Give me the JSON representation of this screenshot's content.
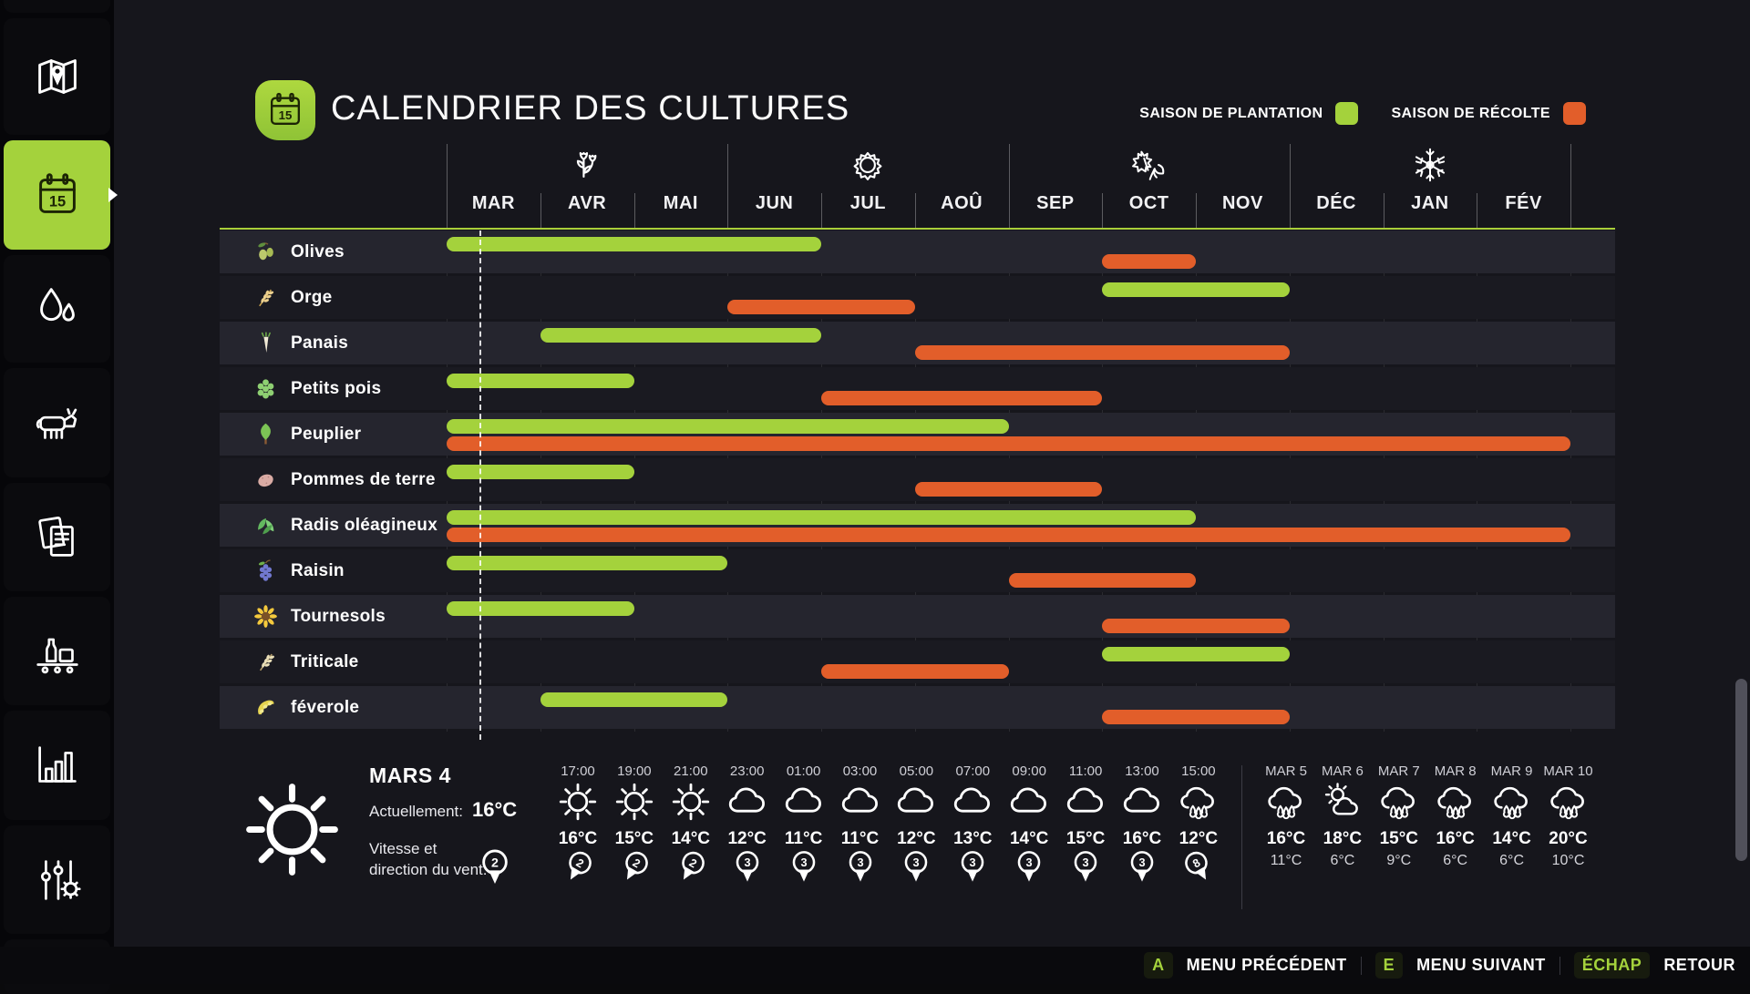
{
  "header": {
    "title": "CALENDRIER DES CULTURES"
  },
  "legend": {
    "plantation_label": "SAISON DE PLANTATION",
    "plantation_color": "#a4d23c",
    "recolte_label": "SAISON DE RÉCOLTE",
    "recolte_color": "#e25e2a"
  },
  "sidebar": {
    "items": [
      {
        "id": "map",
        "icon": "map",
        "selected": false
      },
      {
        "id": "calendar",
        "icon": "calendar",
        "selected": true
      },
      {
        "id": "water",
        "icon": "drops",
        "selected": false
      },
      {
        "id": "animals",
        "icon": "cow",
        "selected": false
      },
      {
        "id": "contracts",
        "icon": "documents",
        "selected": false
      },
      {
        "id": "production",
        "icon": "production",
        "selected": false
      },
      {
        "id": "statistics",
        "icon": "stats",
        "selected": false
      },
      {
        "id": "settings",
        "icon": "settings",
        "selected": false
      }
    ]
  },
  "chart_data": {
    "type": "gantt",
    "title": "CALENDRIER DES CULTURES",
    "months": [
      "MAR",
      "AVR",
      "MAI",
      "JUN",
      "JUL",
      "AOÛ",
      "SEP",
      "OCT",
      "NOV",
      "DÉC",
      "JAN",
      "FÉV"
    ],
    "seasons": [
      {
        "name": "printemps",
        "icon": "flowers",
        "center_month_index": 1
      },
      {
        "name": "ete",
        "icon": "season-sun",
        "center_month_index": 4
      },
      {
        "name": "automne",
        "icon": "leaves",
        "center_month_index": 7
      },
      {
        "name": "hiver",
        "icon": "snowflake",
        "center_month_index": 10
      }
    ],
    "current_date_line": {
      "month_index": 0,
      "fraction": 0.35
    },
    "crops": [
      {
        "name": "Olives",
        "icon": "olives",
        "plantation": [
          [
            1,
            4
          ]
        ],
        "recolte": [
          [
            8,
            8
          ]
        ]
      },
      {
        "name": "Orge",
        "icon": "orge",
        "plantation": [
          [
            8,
            9
          ]
        ],
        "recolte": [
          [
            4,
            5
          ]
        ]
      },
      {
        "name": "Panais",
        "icon": "panais",
        "plantation": [
          [
            2,
            4
          ]
        ],
        "recolte": [
          [
            6,
            9
          ]
        ]
      },
      {
        "name": "Petits pois",
        "icon": "petits-pois",
        "plantation": [
          [
            1,
            2
          ]
        ],
        "recolte": [
          [
            5,
            7
          ]
        ]
      },
      {
        "name": "Peuplier",
        "icon": "peuplier",
        "plantation": [
          [
            1,
            6
          ]
        ],
        "recolte": [
          [
            1,
            12
          ]
        ]
      },
      {
        "name": "Pommes de terre",
        "icon": "pommes-de-terre",
        "plantation": [
          [
            1,
            2
          ]
        ],
        "recolte": [
          [
            6,
            7
          ]
        ]
      },
      {
        "name": "Radis oléagineux",
        "icon": "radis",
        "plantation": [
          [
            1,
            8
          ]
        ],
        "recolte": [
          [
            1,
            12
          ]
        ]
      },
      {
        "name": "Raisin",
        "icon": "raisin",
        "plantation": [
          [
            1,
            3
          ]
        ],
        "recolte": [
          [
            7,
            8
          ]
        ]
      },
      {
        "name": "Tournesols",
        "icon": "tournesols",
        "plantation": [
          [
            1,
            2
          ]
        ],
        "recolte": [
          [
            8,
            9
          ]
        ]
      },
      {
        "name": "Triticale",
        "icon": "triticale",
        "plantation": [
          [
            8,
            9
          ]
        ],
        "recolte": [
          [
            5,
            6
          ]
        ]
      },
      {
        "name": "féverole",
        "icon": "feverole",
        "plantation": [
          [
            2,
            3
          ]
        ],
        "recolte": [
          [
            8,
            9
          ]
        ]
      }
    ]
  },
  "weather": {
    "current": {
      "date": "MARS 4",
      "icon": "sun",
      "now_label": "Actuellement:",
      "temperature": "16°C",
      "wind_label_line1": "Vitesse et",
      "wind_label_line2": "direction du vent:",
      "wind": "2",
      "wind_dir_deg": 0
    },
    "hourly": [
      {
        "time": "17:00",
        "icon": "sun",
        "temp": "16°C",
        "wind": "2",
        "dir_deg": 30
      },
      {
        "time": "19:00",
        "icon": "sun",
        "temp": "15°C",
        "wind": "2",
        "dir_deg": 30
      },
      {
        "time": "21:00",
        "icon": "sun",
        "temp": "14°C",
        "wind": "2",
        "dir_deg": 30
      },
      {
        "time": "23:00",
        "icon": "cloud",
        "temp": "12°C",
        "wind": "3",
        "dir_deg": 0
      },
      {
        "time": "01:00",
        "icon": "cloud",
        "temp": "11°C",
        "wind": "3",
        "dir_deg": 0
      },
      {
        "time": "03:00",
        "icon": "cloud",
        "temp": "11°C",
        "wind": "3",
        "dir_deg": 0
      },
      {
        "time": "05:00",
        "icon": "cloud",
        "temp": "12°C",
        "wind": "3",
        "dir_deg": 0
      },
      {
        "time": "07:00",
        "icon": "cloud",
        "temp": "13°C",
        "wind": "3",
        "dir_deg": 0
      },
      {
        "time": "09:00",
        "icon": "cloud",
        "temp": "14°C",
        "wind": "3",
        "dir_deg": 0
      },
      {
        "time": "11:00",
        "icon": "cloud",
        "temp": "15°C",
        "wind": "3",
        "dir_deg": 0
      },
      {
        "time": "13:00",
        "icon": "cloud",
        "temp": "16°C",
        "wind": "3",
        "dir_deg": 0
      },
      {
        "time": "15:00",
        "icon": "rain",
        "temp": "12°C",
        "wind": "8",
        "dir_deg": -30
      }
    ],
    "daily": [
      {
        "day": "MAR 5",
        "icon": "rain",
        "high": "16°C",
        "low": "11°C"
      },
      {
        "day": "MAR 6",
        "icon": "partly",
        "high": "18°C",
        "low": "6°C"
      },
      {
        "day": "MAR 7",
        "icon": "rain",
        "high": "15°C",
        "low": "9°C"
      },
      {
        "day": "MAR 8",
        "icon": "rain",
        "high": "16°C",
        "low": "6°C"
      },
      {
        "day": "MAR 9",
        "icon": "rain",
        "high": "14°C",
        "low": "6°C"
      },
      {
        "day": "MAR 10",
        "icon": "rain",
        "high": "20°C",
        "low": "10°C"
      }
    ]
  },
  "menu_bar": {
    "items": [
      {
        "key": "A",
        "label": "MENU PRÉCÉDENT"
      },
      {
        "key": "E",
        "label": "MENU SUIVANT"
      },
      {
        "key": "ÉCHAP",
        "label": "RETOUR"
      }
    ]
  }
}
